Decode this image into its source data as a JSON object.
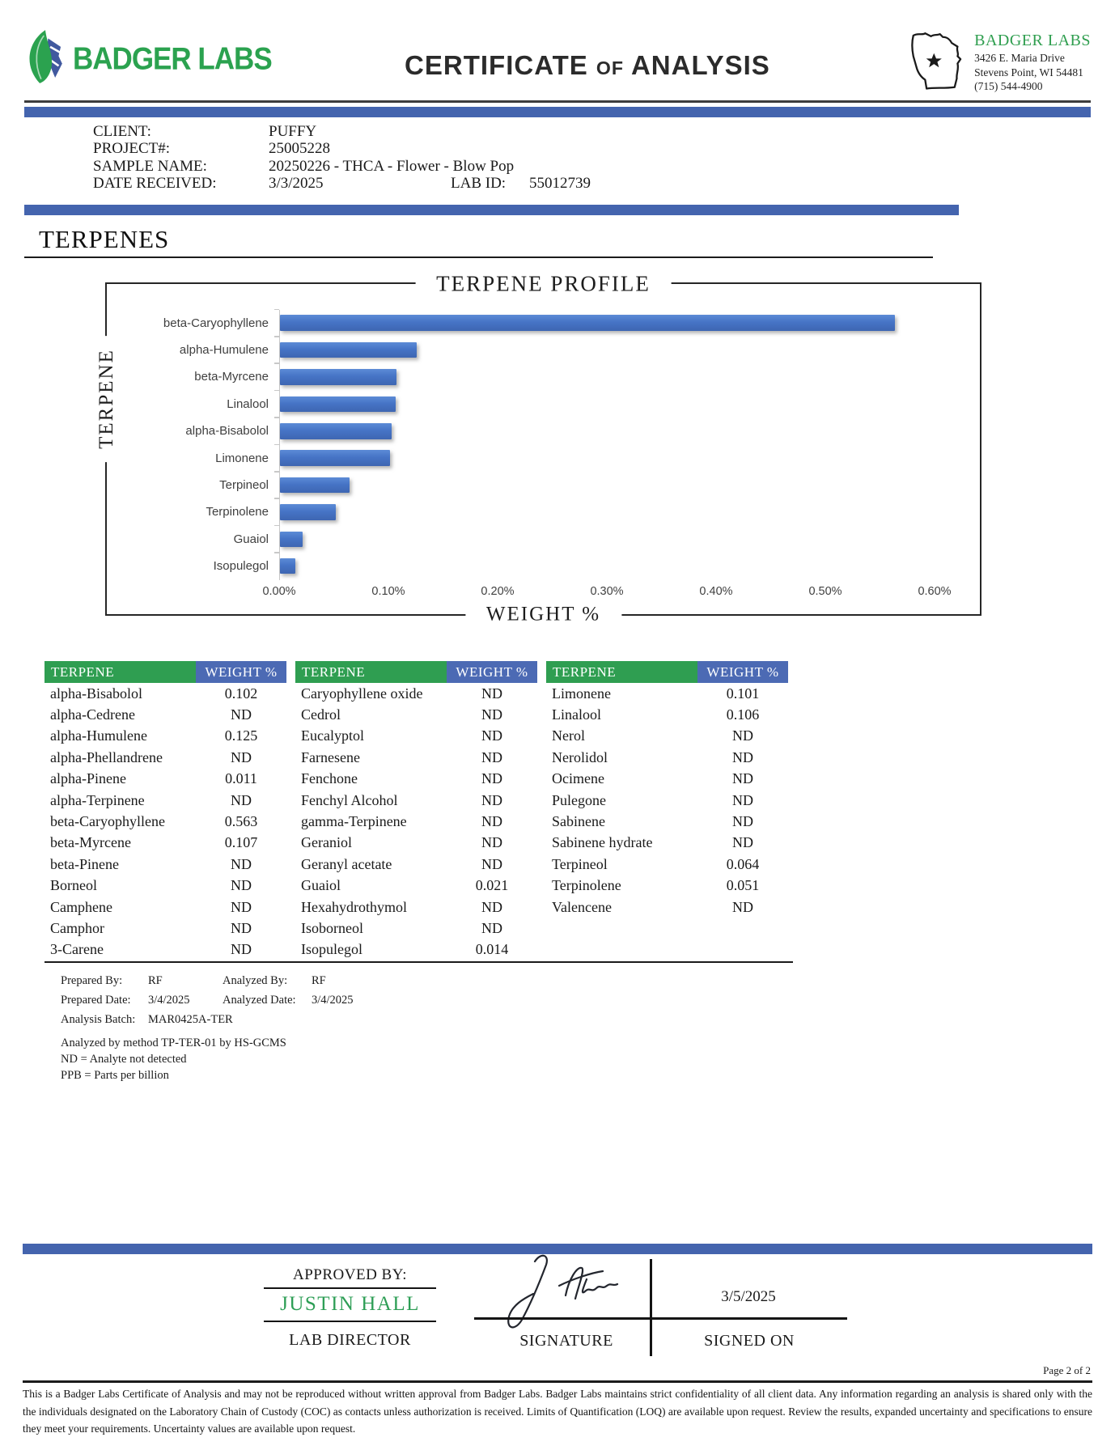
{
  "header": {
    "brand": "BADGER LABS",
    "title_left": "CERTIFICATE",
    "title_mid": "of",
    "title_right": "ANALYSIS",
    "lab_card": {
      "name": "BADGER LABS",
      "address1": "3426 E. Maria Drive",
      "address2": "Stevens Point, WI 54481",
      "phone": "(715) 544-4900"
    }
  },
  "sample_info": {
    "client_label": "CLIENT:",
    "client": "PUFFY",
    "project_label": "PROJECT#:",
    "project": "25005228",
    "sample_name_label": "SAMPLE NAME:",
    "sample_name": "20250226 - THCA - Flower - Blow Pop",
    "date_received_label": "DATE RECEIVED:",
    "date_received": "3/3/2025",
    "lab_id_label": "LAB ID:",
    "lab_id": "55012739"
  },
  "section_title": "TERPENES",
  "chart_data": {
    "type": "bar",
    "orientation": "horizontal",
    "title": "TERPENE PROFILE",
    "xlabel": "WEIGHT %",
    "ylabel": "TERPENE",
    "categories": [
      "beta-Caryophyllene",
      "alpha-Humulene",
      "beta-Myrcene",
      "Linalool",
      "alpha-Bisabolol",
      "Limonene",
      "Terpineol",
      "Terpinolene",
      "Guaiol",
      "Isopulegol"
    ],
    "values": [
      0.563,
      0.125,
      0.107,
      0.106,
      0.102,
      0.101,
      0.064,
      0.051,
      0.021,
      0.014
    ],
    "units": "weight %",
    "xlim": [
      0,
      0.6
    ],
    "x_ticks": [
      "0.00%",
      "0.10%",
      "0.20%",
      "0.30%",
      "0.40%",
      "0.50%",
      "0.60%"
    ],
    "grid": false,
    "legend": false,
    "bar_color": "#4472c4"
  },
  "table": {
    "header_terpene": "TERPENE",
    "header_weight": "WEIGHT %",
    "columns": [
      [
        {
          "name": "alpha-Bisabolol",
          "value": "0.102"
        },
        {
          "name": "alpha-Cedrene",
          "value": "ND"
        },
        {
          "name": "alpha-Humulene",
          "value": "0.125"
        },
        {
          "name": "alpha-Phellandrene",
          "value": "ND"
        },
        {
          "name": "alpha-Pinene",
          "value": "0.011"
        },
        {
          "name": "alpha-Terpinene",
          "value": "ND"
        },
        {
          "name": "beta-Caryophyllene",
          "value": "0.563"
        },
        {
          "name": "beta-Myrcene",
          "value": "0.107"
        },
        {
          "name": "beta-Pinene",
          "value": "ND"
        },
        {
          "name": "Borneol",
          "value": "ND"
        },
        {
          "name": "Camphene",
          "value": "ND"
        },
        {
          "name": "Camphor",
          "value": "ND"
        },
        {
          "name": "3-Carene",
          "value": "ND"
        }
      ],
      [
        {
          "name": "Caryophyllene oxide",
          "value": "ND"
        },
        {
          "name": "Cedrol",
          "value": "ND"
        },
        {
          "name": "Eucalyptol",
          "value": "ND"
        },
        {
          "name": "Farnesene",
          "value": "ND"
        },
        {
          "name": "Fenchone",
          "value": "ND"
        },
        {
          "name": "Fenchyl Alcohol",
          "value": "ND"
        },
        {
          "name": "gamma-Terpinene",
          "value": "ND"
        },
        {
          "name": "Geraniol",
          "value": "ND"
        },
        {
          "name": "Geranyl acetate",
          "value": "ND"
        },
        {
          "name": "Guaiol",
          "value": "0.021"
        },
        {
          "name": "Hexahydrothymol",
          "value": "ND"
        },
        {
          "name": "Isoborneol",
          "value": "ND"
        },
        {
          "name": "Isopulegol",
          "value": "0.014"
        }
      ],
      [
        {
          "name": "Limonene",
          "value": "0.101"
        },
        {
          "name": "Linalool",
          "value": "0.106"
        },
        {
          "name": "Nerol",
          "value": "ND"
        },
        {
          "name": "Nerolidol",
          "value": "ND"
        },
        {
          "name": "Ocimene",
          "value": "ND"
        },
        {
          "name": "Pulegone",
          "value": "ND"
        },
        {
          "name": "Sabinene",
          "value": "ND"
        },
        {
          "name": "Sabinene hydrate",
          "value": "ND"
        },
        {
          "name": "Terpineol",
          "value": "0.064"
        },
        {
          "name": "Terpinolene",
          "value": "0.051"
        },
        {
          "name": "Valencene",
          "value": "ND"
        }
      ]
    ]
  },
  "analysis_meta": {
    "prepared_by_label": "Prepared By:",
    "prepared_by": "RF",
    "analyzed_by_label": "Analyzed By:",
    "analyzed_by": "RF",
    "prepared_date_label": "Prepared Date:",
    "prepared_date": "3/4/2025",
    "analyzed_date_label": "Analyzed Date:",
    "analyzed_date": "3/4/2025",
    "analysis_batch_label": "Analysis Batch:",
    "analysis_batch": "MAR0425A-TER",
    "method_note": "Analyzed by method TP-TER-01 by HS-GCMS",
    "nd_note": "ND = Analyte not detected",
    "ppb_note": "PPB = Parts per billion"
  },
  "approval": {
    "approved_by_label": "APPROVED BY:",
    "approver": "JUSTIN HALL",
    "role_label": "LAB DIRECTOR",
    "signature_label": "SIGNATURE",
    "signed_on_label": "SIGNED ON",
    "signed_date": "3/5/2025"
  },
  "footer": {
    "page": "Page 2 of 2",
    "disclaimer": "This is a Badger Labs Certificate of Analysis and may not be reproduced without written approval from Badger Labs. Badger Labs maintains strict confidentiality of all client data. Any information regarding an analysis is shared only with the the individuals designated on the Laboratory Chain of Custody (COC) as contacts unless authorization is received. Limits of Quantification (LOQ) are available upon request. Review the results, expanded uncertainty and specifications to ensure they meet your requirements. Uncertainty values are available upon request."
  },
  "colors": {
    "band_blue": "#4464ae",
    "table_header_green": "#2f9e51",
    "table_header_blue": "#4c6ab4",
    "bar_blue": "#4472c4",
    "brand_green": "#2ba24f",
    "approver_green": "#2e9e56"
  }
}
